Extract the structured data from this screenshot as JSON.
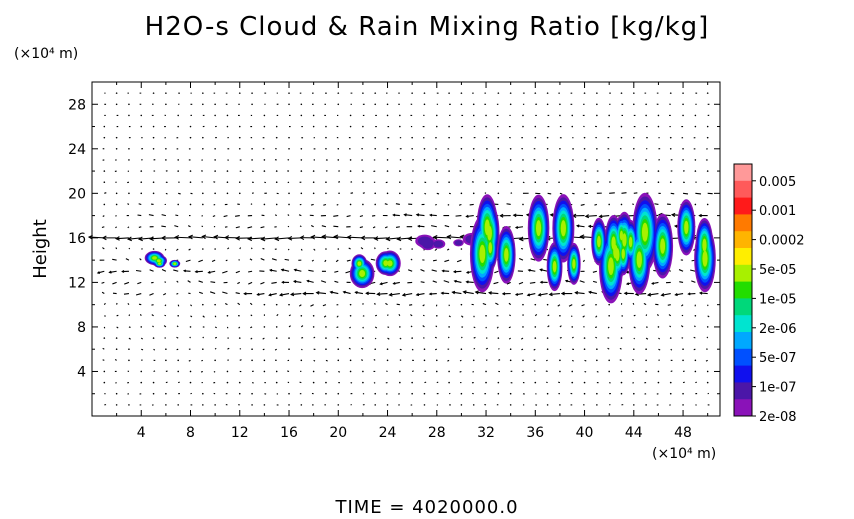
{
  "chart_data": {
    "type": "heatmap",
    "title": "H2O-s Cloud & Rain Mixing Ratio [kg/kg]",
    "ylabel": "Height",
    "x_unit": "(×10⁴ m)",
    "y_unit": "(×10⁴ m)",
    "xlim": [
      0,
      51
    ],
    "ylim": [
      0,
      30
    ],
    "x_ticks": [
      4,
      8,
      12,
      16,
      20,
      24,
      28,
      32,
      36,
      40,
      44,
      48
    ],
    "y_ticks": [
      4,
      8,
      12,
      16,
      20,
      24,
      28
    ],
    "colorbar": {
      "labels": [
        "0.005",
        "0.001",
        "0.0002",
        "5e-05",
        "1e-05",
        "2e-06",
        "5e-07",
        "1e-07",
        "2e-08"
      ],
      "colors": [
        "#ff9999",
        "#ff5a5a",
        "#ff1a1a",
        "#ff7a00",
        "#ffb400",
        "#ffee00",
        "#a8f000",
        "#22dd00",
        "#00d87a",
        "#00e4d0",
        "#00a8ff",
        "#0050ff",
        "#1010ee",
        "#4b16a8",
        "#8a12b8"
      ]
    },
    "clouds": [
      {
        "x": [
          4.5,
          7.0
        ],
        "y": [
          13.3,
          14.6
        ],
        "max_level": "5e-05"
      },
      {
        "x": [
          21.5,
          25.0
        ],
        "y": [
          11.8,
          14.8
        ],
        "max_level": "5e-05"
      },
      {
        "x": [
          26.5,
          31.0
        ],
        "y": [
          15.0,
          16.2
        ],
        "max_level": "2e-08"
      },
      {
        "x": [
          31.5,
          51.0
        ],
        "y": [
          11.5,
          18.8
        ],
        "max_level": "5e-05"
      }
    ],
    "wind_vectors": "shown as arrows; strongest (westward) near heights 16-20, 12-14"
  },
  "time_label": "TIME = 4020000.0"
}
